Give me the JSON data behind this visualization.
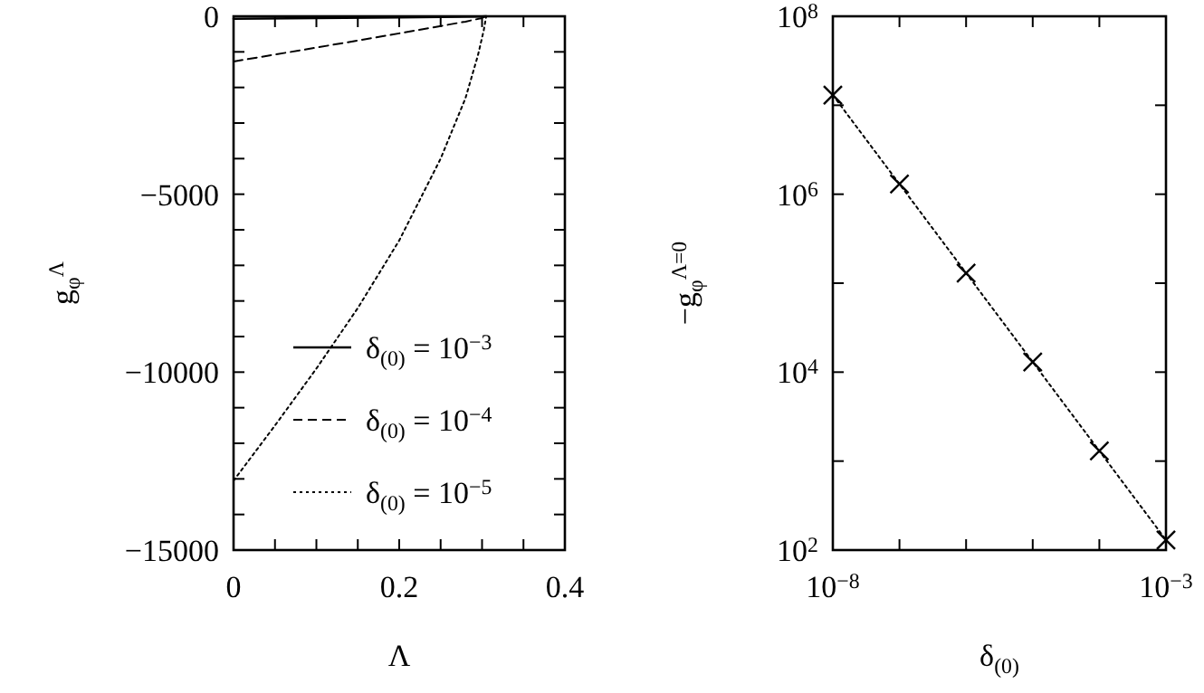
{
  "chart_data": [
    {
      "type": "line",
      "xlabel": "Λ",
      "ylabel": "g$_{φ}$$^{Λ}$",
      "xlim": [
        0,
        0.4
      ],
      "ylim": [
        -15000,
        0
      ],
      "xticks": [
        0,
        {
          "value": 0.05,
          "label": null
        },
        {
          "value": 0.1,
          "label": null
        },
        {
          "value": 0.15,
          "label": null
        },
        0.2,
        {
          "value": 0.25,
          "label": null
        },
        {
          "value": 0.3,
          "label": null
        },
        {
          "value": 0.35,
          "label": null
        },
        0.4
      ],
      "yticks": [
        {
          "value": -15000,
          "label": "−15000"
        },
        {
          "value": -14000,
          "label": null
        },
        {
          "value": -13000,
          "label": null
        },
        {
          "value": -12000,
          "label": null
        },
        {
          "value": -11000,
          "label": null
        },
        {
          "value": -10000,
          "label": "−10000"
        },
        {
          "value": -9000,
          "label": null
        },
        {
          "value": -8000,
          "label": null
        },
        {
          "value": -7000,
          "label": null
        },
        {
          "value": -6000,
          "label": null
        },
        {
          "value": -5000,
          "label": "−5000"
        },
        {
          "value": -4000,
          "label": null
        },
        {
          "value": -3000,
          "label": null
        },
        {
          "value": -2000,
          "label": null
        },
        {
          "value": -1000,
          "label": null
        },
        0
      ],
      "grid": false,
      "legend": "bottom right",
      "marker": "none",
      "series": [
        {
          "name": "δ$_{(0)}$ = 10$^{−3}$",
          "color": "#000000",
          "line_style": "solid",
          "x": [
            0,
            0.1,
            0.2,
            0.3,
            0.305
          ],
          "values": [
            -70,
            -50,
            -30,
            -8,
            0
          ]
        },
        {
          "name": "δ$_{(0)}$ = 10$^{−4}$",
          "color": "#000000",
          "line_style": "dashed",
          "x": [
            0,
            0.1,
            0.2,
            0.28,
            0.3,
            0.304
          ],
          "values": [
            -1270,
            -880,
            -480,
            -150,
            -50,
            0
          ]
        },
        {
          "name": "δ$_{(0)}$ = 10$^{−5}$",
          "color": "#000000",
          "line_style": "dotted",
          "x": [
            0,
            0.05,
            0.1,
            0.15,
            0.2,
            0.25,
            0.28,
            0.295,
            0.302,
            0.305
          ],
          "values": [
            -13050,
            -11500,
            -9900,
            -8200,
            -6300,
            -4000,
            -2300,
            -1100,
            -400,
            0
          ]
        }
      ]
    },
    {
      "type": "line",
      "xlabel": "δ$_{(0)}$",
      "ylabel": "−g$_{φ}$$^{Λ=0}$",
      "log": "xy",
      "xlim": [
        1e-08,
        0.001
      ],
      "ylim": [
        100,
        100000000
      ],
      "xticks": [
        {
          "value": 1e-08,
          "label": "10$^{−8}$"
        },
        {
          "value": 1e-07,
          "label": null
        },
        {
          "value": 1e-06,
          "label": null
        },
        {
          "value": 1e-05,
          "label": null
        },
        {
          "value": 0.0001,
          "label": null
        },
        {
          "value": 0.001,
          "label": "10$^{−3}$"
        }
      ],
      "yticks": [
        {
          "value": 100,
          "label": "10$^{2}$"
        },
        {
          "value": 1000,
          "label": null
        },
        {
          "value": 10000,
          "label": "10$^{4}$"
        },
        {
          "value": 100000,
          "label": null
        },
        {
          "value": 1000000,
          "label": "10$^{6}$"
        },
        {
          "value": 10000000,
          "label": null
        },
        {
          "value": 100000000,
          "label": "10$^{8}$"
        }
      ],
      "grid": false,
      "legend": false,
      "marker": "cross",
      "line_style": "dotted",
      "series": [
        {
          "color": "#000000",
          "x": [
            1e-08,
            1e-07,
            1e-06,
            1e-05,
            0.0001,
            0.001
          ],
          "values": [
            13000000,
            1300000,
            130000,
            13000,
            1300,
            130
          ]
        }
      ]
    }
  ]
}
